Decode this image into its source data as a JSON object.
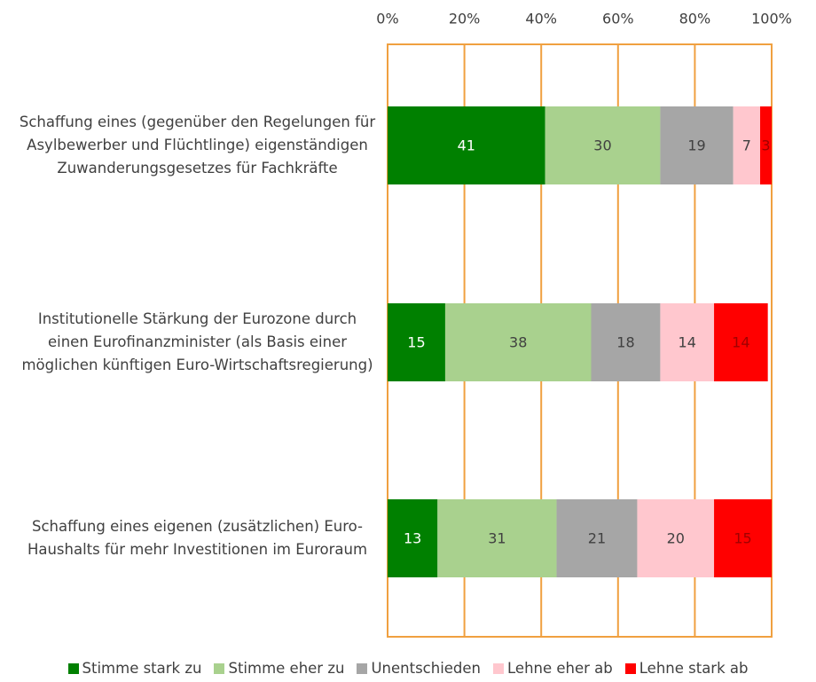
{
  "chart_data": {
    "type": "bar",
    "orientation": "horizontal",
    "stacked": true,
    "categories": [
      "Schaffung eines (gegenüber den Regelungen für Asylbewerber und Flüchtlinge) eigenständigen Zuwanderungsgesetzes für Fachkräfte",
      "Institutionelle Stärkung der Eurozone durch einen Eurofinanzminister (als Basis einer möglichen künftigen Euro-Wirtschaftsregierung)",
      "Schaffung eines eigenen (zusätzlichen) Euro-Haushalts für mehr Investitionen im Euroraum"
    ],
    "series": [
      {
        "name": "Stimme stark zu",
        "color": "#008000",
        "values": [
          41,
          15,
          13
        ]
      },
      {
        "name": "Stimme eher zu",
        "color": "#a9d18e",
        "values": [
          30,
          38,
          31
        ]
      },
      {
        "name": "Unentschieden",
        "color": "#a6a6a6",
        "values": [
          19,
          18,
          21
        ]
      },
      {
        "name": "Lehne eher ab",
        "color": "#ffc7ce",
        "values": [
          7,
          14,
          20
        ]
      },
      {
        "name": "Lehne stark ab",
        "color": "#ff0000",
        "values": [
          3,
          14,
          15
        ]
      }
    ],
    "xlim": [
      0,
      100
    ],
    "xticks": [
      {
        "value": 0,
        "label": "0%"
      },
      {
        "value": 20,
        "label": "20%"
      },
      {
        "value": 40,
        "label": "40%"
      },
      {
        "value": 60,
        "label": "60%"
      },
      {
        "value": 80,
        "label": "80%"
      },
      {
        "value": 100,
        "label": "100%"
      }
    ],
    "grid": true,
    "grid_color": "#f0a040",
    "legend": "bottom"
  }
}
